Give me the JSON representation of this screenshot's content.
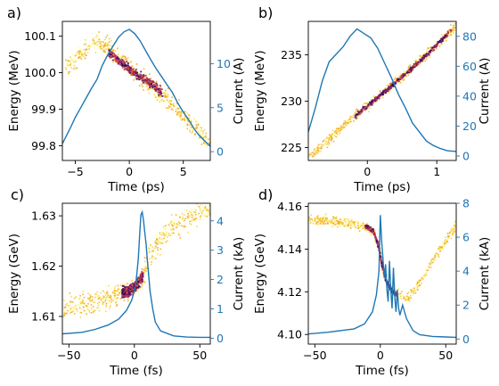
{
  "figure": {
    "background": "#ffffff",
    "current_color": "#1f77b4",
    "density_colormap": [
      "#fcffa4",
      "#f7d03c",
      "#f1a31d",
      "#dd513a",
      "#a92e5e",
      "#6a176e",
      "#2d0b59",
      "#000004"
    ]
  },
  "chart_data": [
    {
      "panel_label": "a)",
      "type": "scatter",
      "xlabel": "Time (ps)",
      "ylabel": "Energy (MeV)",
      "y2label": "Current (A)",
      "xlim": [
        -6.2,
        7.5
      ],
      "ylim": [
        99.76,
        100.14
      ],
      "y2lim": [
        -1,
        14.8
      ],
      "xticks": [
        -5,
        0,
        5
      ],
      "yticks": [
        99.8,
        99.9,
        100.0,
        100.1
      ],
      "y2ticks": [
        0,
        5,
        10
      ],
      "xtick_labels": [
        "−5",
        "0",
        "5"
      ],
      "ytick_labels": [
        "99.8",
        "99.9",
        "100.0",
        "100.1"
      ],
      "y2tick_labels": [
        "0",
        "5",
        "10"
      ],
      "series": [
        {
          "type": "line",
          "axis": "right",
          "x": [
            -6.2,
            -5.5,
            -5.0,
            -4.5,
            -4.0,
            -3.5,
            -3.0,
            -2.5,
            -2.0,
            -1.5,
            -1.0,
            -0.5,
            0.0,
            0.5,
            1.0,
            1.5,
            2.0,
            2.5,
            3.0,
            3.5,
            4.0,
            4.5,
            5.0,
            5.5,
            6.0,
            6.5,
            7.0,
            7.5
          ],
          "y": [
            0.9,
            2.6,
            3.9,
            5.0,
            6.1,
            7.2,
            8.2,
            9.8,
            11.0,
            12.0,
            13.0,
            13.6,
            13.9,
            13.4,
            12.6,
            11.5,
            10.4,
            9.4,
            8.5,
            7.6,
            6.7,
            5.5,
            4.5,
            3.6,
            2.6,
            1.8,
            1.2,
            0.6
          ]
        },
        {
          "type": "density",
          "axis": "left",
          "center": {
            "x": [
              -6.0,
              -5.0,
              -4.0,
              -3.0,
              -2.0,
              -1.0,
              0.0,
              1.0,
              2.0,
              3.0,
              4.0,
              5.0,
              6.0,
              7.0,
              7.5
            ],
            "y": [
              100.01,
              100.04,
              100.07,
              100.085,
              100.07,
              100.045,
              100.015,
              99.99,
              99.965,
              99.94,
              99.91,
              99.88,
              99.85,
              99.82,
              99.8
            ]
          },
          "core": {
            "x": [
              -2.0,
              -1.0,
              0.0,
              1.0,
              2.0,
              3.0
            ],
            "y": [
              100.055,
              100.035,
              100.01,
              99.99,
              99.97,
              99.945
            ]
          },
          "spread": 0.018
        }
      ]
    },
    {
      "panel_label": "b)",
      "type": "scatter",
      "xlabel": "Time (ps)",
      "ylabel": "Energy (MeV)",
      "y2label": "Current (A)",
      "xlim": [
        -0.85,
        1.28
      ],
      "ylim": [
        223.6,
        238.6
      ],
      "y2lim": [
        -3,
        90
      ],
      "xticks": [
        0,
        1
      ],
      "yticks": [
        225,
        230,
        235
      ],
      "y2ticks": [
        0,
        20,
        40,
        60,
        80
      ],
      "xtick_labels": [
        "0",
        "1"
      ],
      "ytick_labels": [
        "225",
        "230",
        "235"
      ],
      "y2tick_labels": [
        "0",
        "20",
        "40",
        "60",
        "80"
      ],
      "series": [
        {
          "type": "line",
          "axis": "right",
          "x": [
            -0.85,
            -0.75,
            -0.65,
            -0.55,
            -0.45,
            -0.35,
            -0.25,
            -0.15,
            -0.05,
            0.05,
            0.15,
            0.25,
            0.35,
            0.45,
            0.55,
            0.65,
            0.75,
            0.85,
            0.95,
            1.05,
            1.15,
            1.28
          ],
          "y": [
            16,
            32,
            50,
            63,
            68,
            73,
            80,
            85,
            82,
            79,
            72,
            62,
            52,
            41,
            32,
            22,
            16,
            10,
            7,
            5,
            3.5,
            3
          ]
        },
        {
          "type": "density",
          "axis": "left",
          "center": {
            "x": [
              -0.85,
              -0.5,
              -0.2,
              0.0,
              0.3,
              0.6,
              0.9,
              1.28
            ],
            "y": [
              224.0,
              226.4,
              228.4,
              229.6,
              231.5,
              233.4,
              235.5,
              238.3
            ]
          },
          "core": {
            "x": [
              -0.2,
              0.0,
              0.3,
              0.6,
              0.9,
              1.2
            ],
            "y": [
              228.4,
              229.6,
              231.5,
              233.4,
              235.5,
              237.8
            ]
          },
          "spread": 0.35
        }
      ]
    },
    {
      "panel_label": "c)",
      "type": "scatter",
      "xlabel": "Time (fs)",
      "ylabel": "Energy (GeV)",
      "y2label": "Current (kA)",
      "xlim": [
        -55,
        58
      ],
      "ylim": [
        1.6045,
        1.6325
      ],
      "y2lim": [
        -0.2,
        4.6
      ],
      "xticks": [
        -50,
        0,
        50
      ],
      "yticks": [
        1.61,
        1.62,
        1.63
      ],
      "y2ticks": [
        0,
        1,
        2,
        3,
        4
      ],
      "xtick_labels": [
        "−50",
        "0",
        "50"
      ],
      "ytick_labels": [
        "1.61",
        "1.62",
        "1.63"
      ],
      "y2tick_labels": [
        "0",
        "1",
        "2",
        "3",
        "4"
      ],
      "series": [
        {
          "type": "line",
          "axis": "right",
          "x": [
            -55,
            -40,
            -30,
            -20,
            -12,
            -6,
            -2,
            1,
            3,
            4,
            5,
            6,
            7,
            8,
            9,
            10,
            11,
            12,
            14,
            16,
            20,
            30,
            40,
            50,
            58
          ],
          "y": [
            0.15,
            0.2,
            0.3,
            0.45,
            0.65,
            0.95,
            1.3,
            1.8,
            2.7,
            3.5,
            4.2,
            4.3,
            4.0,
            3.6,
            3.2,
            2.6,
            2.1,
            1.6,
            1.0,
            0.55,
            0.25,
            0.08,
            0.04,
            0.03,
            0.03
          ]
        },
        {
          "type": "density",
          "axis": "left",
          "center": {
            "x": [
              -55,
              -40,
              -25,
              -12,
              0,
              5,
              10,
              20,
              30,
              40,
              50,
              58
            ],
            "y": [
              1.6115,
              1.6125,
              1.6135,
              1.6148,
              1.616,
              1.6175,
              1.6215,
              1.6255,
              1.628,
              1.6295,
              1.631,
              1.632
            ]
          },
          "core": {
            "x": [
              -10,
              -5,
              0,
              3,
              6
            ],
            "y": [
              1.6148,
              1.6152,
              1.616,
              1.617,
              1.6185
            ]
          },
          "spread": 0.0015
        }
      ]
    },
    {
      "panel_label": "d)",
      "type": "scatter",
      "xlabel": "Time (fs)",
      "ylabel": "Energy (GeV)",
      "y2label": "Current (kA)",
      "xlim": [
        -55,
        58
      ],
      "ylim": [
        4.0955,
        4.1615
      ],
      "y2lim": [
        -0.3,
        8.0
      ],
      "xticks": [
        -50,
        0,
        50
      ],
      "yticks": [
        4.1,
        4.12,
        4.14,
        4.16
      ],
      "y2ticks": [
        0,
        2,
        4,
        6,
        8
      ],
      "xtick_labels": [
        "−50",
        "0",
        "50"
      ],
      "ytick_labels": [
        "4.10",
        "4.12",
        "4.14",
        "4.16"
      ],
      "y2tick_labels": [
        "0",
        "2",
        "4",
        "6",
        "8"
      ],
      "series": [
        {
          "type": "line",
          "axis": "right",
          "x": [
            -55,
            -40,
            -30,
            -20,
            -12,
            -6,
            -3,
            -1,
            0,
            1,
            2,
            3,
            4,
            5,
            6,
            7,
            8,
            9,
            10,
            11,
            12,
            13,
            14,
            15,
            17,
            20,
            25,
            30,
            40,
            50,
            58
          ],
          "y": [
            0.3,
            0.4,
            0.5,
            0.6,
            0.9,
            1.6,
            2.6,
            4.0,
            7.3,
            5.8,
            4.8,
            3.6,
            4.4,
            3.0,
            2.2,
            4.6,
            2.9,
            1.8,
            4.2,
            2.5,
            1.6,
            2.9,
            1.8,
            1.4,
            2.0,
            1.2,
            0.5,
            0.25,
            0.15,
            0.12,
            0.1
          ]
        },
        {
          "type": "density",
          "axis": "left",
          "center": {
            "x": [
              -55,
              -40,
              -25,
              -12,
              -5,
              -1,
              2,
              5,
              8,
              12,
              16,
              20,
              30,
              40,
              50,
              58
            ],
            "y": [
              4.154,
              4.1535,
              4.1525,
              4.151,
              4.148,
              4.14,
              4.13,
              4.125,
              4.122,
              4.12,
              4.118,
              4.117,
              4.125,
              4.135,
              4.145,
              4.152
            ]
          },
          "core": {
            "x": [
              -12,
              -6,
              -2,
              1,
              4,
              8,
              12
            ],
            "y": [
              4.151,
              4.149,
              4.142,
              4.132,
              4.125,
              4.121,
              4.119
            ]
          },
          "spread": 0.0015
        }
      ]
    }
  ]
}
